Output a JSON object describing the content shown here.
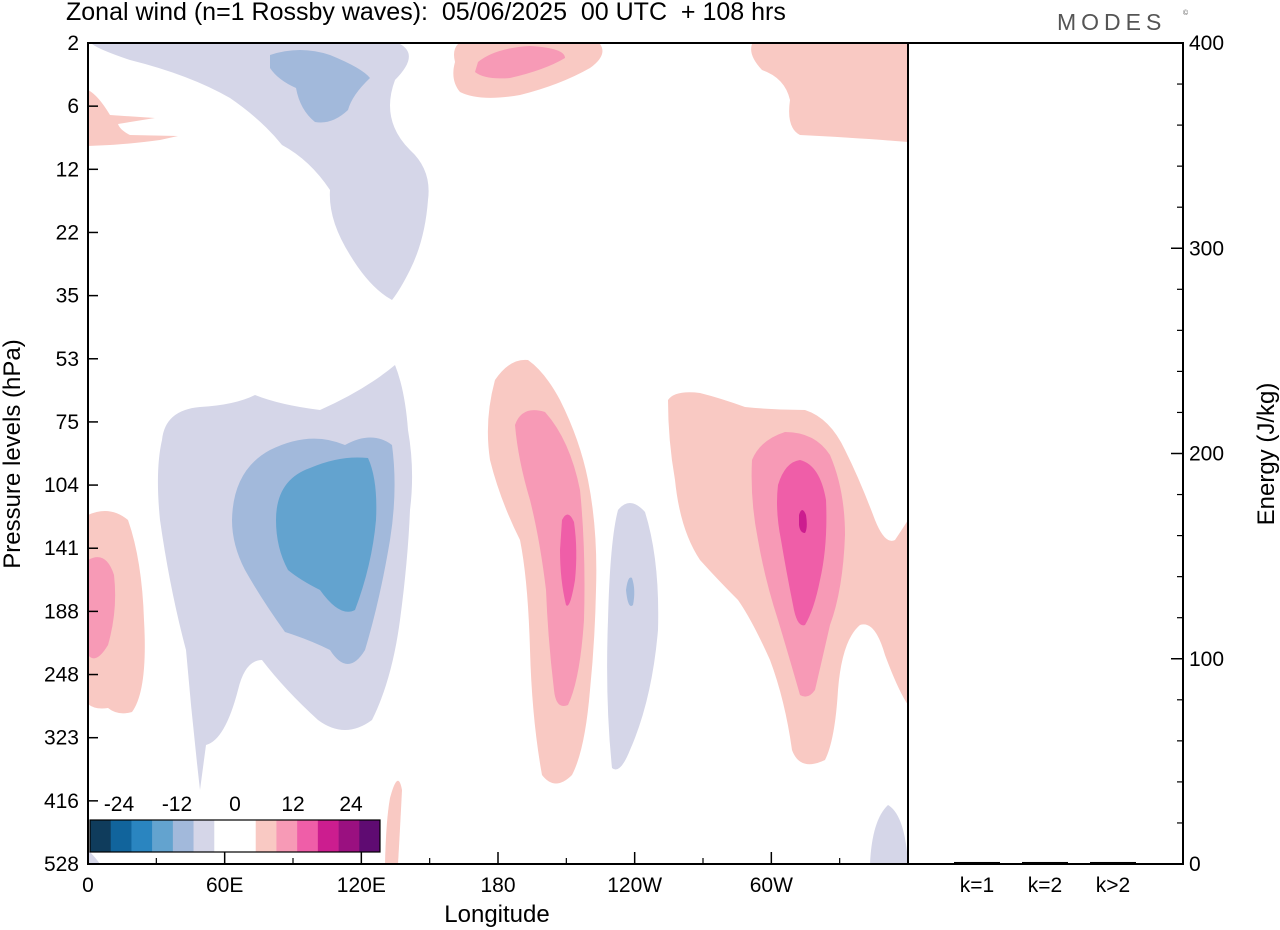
{
  "header": {
    "title": "Zonal wind (n=1 Rossby waves):  05/06/2025  00 UTC  + 108 hrs",
    "brand": "MODES",
    "brand_mark": "©"
  },
  "colors": {
    "neg": [
      "#0f3c5c",
      "#11649c",
      "#2a85c0",
      "#63a3cf",
      "#a2b9db",
      "#d5d6e8"
    ],
    "zero": "#ffffff",
    "pos": [
      "#f9c9c3",
      "#f79ab6",
      "#ef5ea8",
      "#cc1d8f",
      "#9a1080",
      "#5f0b72"
    ]
  },
  "chart_data": [
    {
      "type": "heatmap",
      "title": "Zonal wind (n=1 Rossby waves):  05/06/2025  00 UTC  + 108 hrs",
      "xlabel": "Longitude",
      "ylabel": "Pressure levels (hPa)",
      "x_ticks": [
        "0",
        "60E",
        "120E",
        "180",
        "120W",
        "60W"
      ],
      "x_tick_values_deg": [
        0,
        60,
        120,
        180,
        240,
        300
      ],
      "xlim_deg": [
        0,
        360
      ],
      "y_ticks": [
        "2",
        "6",
        "12",
        "22",
        "35",
        "53",
        "75",
        "104",
        "141",
        "188",
        "248",
        "323",
        "416",
        "528"
      ],
      "colorbar": {
        "labels": [
          "-24",
          "-12",
          "0",
          "12",
          "24"
        ],
        "levels": [
          -30,
          -25,
          -20,
          -15,
          -10,
          -5,
          0,
          5,
          10,
          15,
          20,
          25,
          30
        ]
      },
      "features": [
        {
          "sign": "negative",
          "lon_deg": 110,
          "pressure_hPa": 141,
          "peak_level": 3
        },
        {
          "sign": "negative",
          "lon_deg": 105,
          "pressure_hPa": 4,
          "peak_level": 2
        },
        {
          "sign": "positive",
          "lon_deg": 210,
          "pressure_hPa": 141,
          "peak_level": 3
        },
        {
          "sign": "positive",
          "lon_deg": 313,
          "pressure_hPa": 125,
          "peak_level": 4
        },
        {
          "sign": "positive",
          "lon_deg": 4,
          "pressure_hPa": 188,
          "peak_level": 2
        },
        {
          "sign": "positive",
          "lon_deg": 190,
          "pressure_hPa": 3,
          "peak_level": 2
        },
        {
          "sign": "negative",
          "lon_deg": 238,
          "pressure_hPa": 188,
          "peak_level": 2
        }
      ]
    },
    {
      "type": "bar",
      "ylabel": "Energy (J/kg)",
      "categories": [
        "k=1",
        "k=2",
        "k>2"
      ],
      "values": [
        0.5,
        0.5,
        0.5
      ],
      "ylim": [
        0,
        400
      ],
      "y_ticks": [
        "0",
        "100",
        "200",
        "300",
        "400"
      ]
    }
  ]
}
